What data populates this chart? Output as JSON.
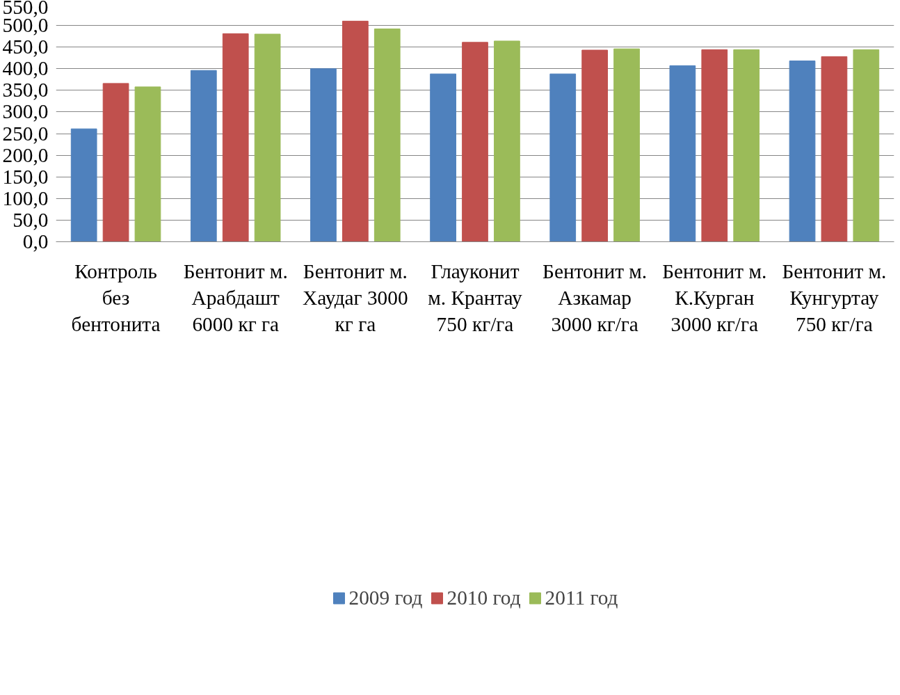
{
  "chart_data": {
    "type": "bar",
    "categories": [
      "Контроль\nбез\nбентонита",
      "Бентонит м.\nАрабдашт\n6000 кг га",
      "Бентонит м.\nХаудаг 3000\nкг га",
      "Глауконит\nм. Крантау\n750 кг/га",
      "Бентонит м.\nАзкамар\n3000 кг/га",
      "Бентонит м.\nК.Курган\n3000 кг/га",
      "Бентонит м.\nКунгуртау\n750 кг/га"
    ],
    "series": [
      {
        "name": "2009 год",
        "color": "#4f81bd",
        "values": [
          261,
          396,
          400,
          388,
          388,
          407,
          418
        ]
      },
      {
        "name": "2010 год",
        "color": "#c0504d",
        "values": [
          366,
          481,
          510,
          461,
          443,
          444,
          428
        ]
      },
      {
        "name": "2011 год",
        "color": "#9bbb59",
        "values": [
          358,
          480,
          492,
          464,
          446,
          444,
          444
        ]
      }
    ],
    "ylim": [
      0,
      550
    ],
    "yticks": [
      {
        "value": 0,
        "label": "0,0"
      },
      {
        "value": 50,
        "label": "50,0"
      },
      {
        "value": 100,
        "label": "100,0"
      },
      {
        "value": 150,
        "label": "150,0"
      },
      {
        "value": 200,
        "label": "200,0"
      },
      {
        "value": 250,
        "label": "250,0"
      },
      {
        "value": 300,
        "label": "300,0"
      },
      {
        "value": 350,
        "label": "350,0"
      },
      {
        "value": 400,
        "label": "400,0"
      },
      {
        "value": 450,
        "label": "450,0"
      },
      {
        "value": 500,
        "label": "500,0"
      },
      {
        "value": 550,
        "label": "550,0"
      }
    ],
    "grid": "y",
    "legend": "bottom"
  }
}
